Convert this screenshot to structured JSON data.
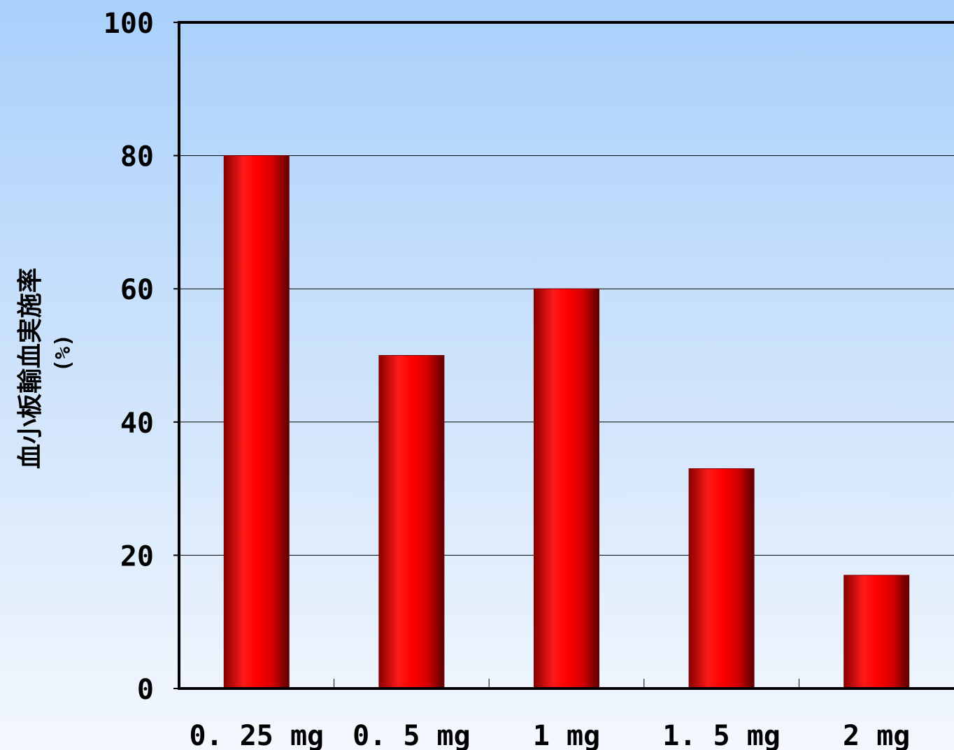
{
  "chart_data": {
    "type": "bar",
    "categories": [
      "0.25 mg",
      "0.5 mg",
      "1 mg",
      "1.5 mg",
      "2 mg"
    ],
    "category_labels": [
      "0. 25  mg",
      "0. 5  mg",
      "1  mg",
      "1. 5  mg",
      "2  mg"
    ],
    "values": [
      80,
      50,
      60,
      33,
      17
    ],
    "ylabel": "血小板輸血実施率",
    "ylabel_unit": "(%)",
    "ylim": [
      0,
      100
    ],
    "yticks": [
      0,
      20,
      40,
      60,
      80,
      100
    ],
    "grid": true,
    "bar_color": "#ff0000",
    "bar_edge_color": "#7a0000",
    "legend": "none"
  }
}
